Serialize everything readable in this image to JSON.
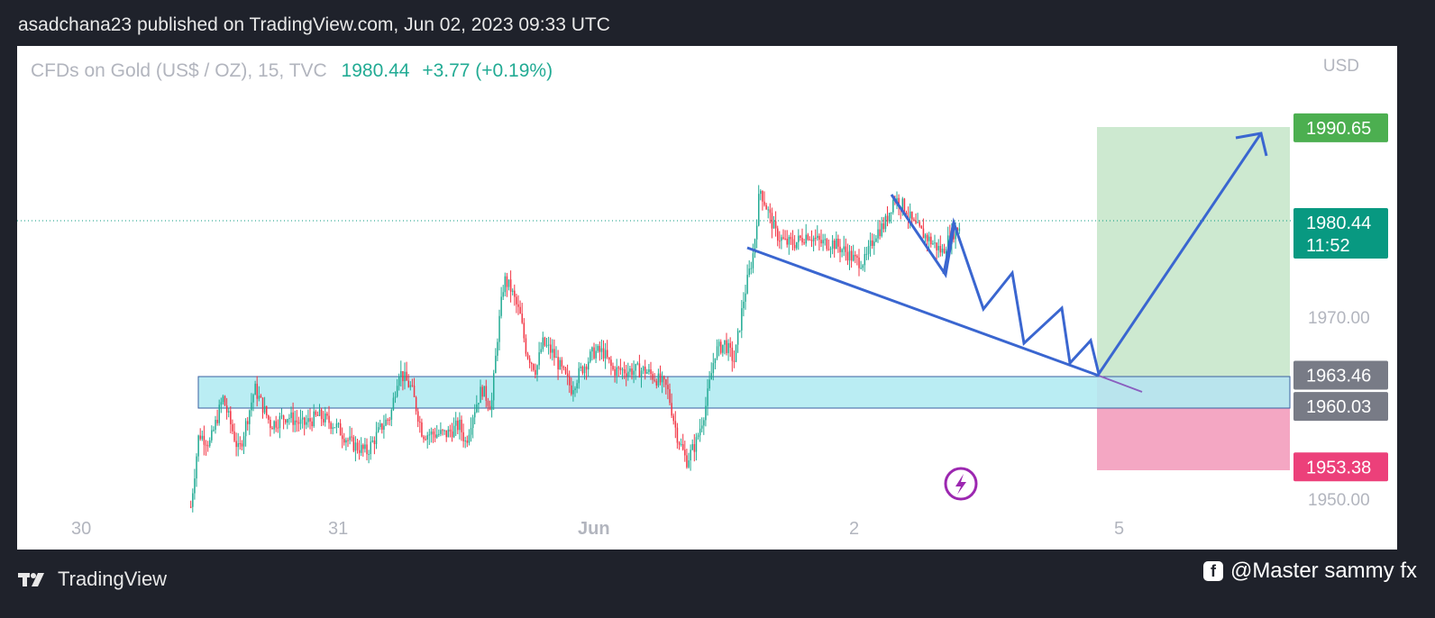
{
  "header": {
    "published_text": "asadchana23 published on TradingView.com, Jun 02, 2023 09:33 UTC"
  },
  "symbol": {
    "name": "CFDs on Gold (US$ / OZ), 15, TVC",
    "price": "1980.44",
    "change": "+3.77 (+0.19%)",
    "currency": "USD"
  },
  "footer": {
    "logo_text": "TradingView",
    "credit": "@Master sammy fx"
  },
  "colors": {
    "up": "#22ab94",
    "down": "#f23645",
    "drawing": "#3a66d0",
    "target_zone": "#cde9d0",
    "stop_zone": "#f4a7c3",
    "support_zone": "#b3ebf2"
  },
  "chart_data": {
    "type": "candlestick",
    "symbol": "CFDs on Gold (US$ / OZ)",
    "interval": "15",
    "x_ticks": [
      "30",
      "31",
      "Jun",
      "2",
      "5"
    ],
    "ylim": [
      1948,
      1995
    ],
    "y_ticks": [
      "1970.00",
      "1950.00"
    ],
    "price_labels": [
      {
        "value": 1990.65,
        "text": "1990.65",
        "color": "#4caf50"
      },
      {
        "value": 1980.44,
        "text": "1980.44",
        "sub": "11:52",
        "color": "#089981"
      },
      {
        "value": 1963.46,
        "text": "1963.46",
        "color": "#787b86"
      },
      {
        "value": 1960.03,
        "text": "1960.03",
        "color": "#787b86"
      },
      {
        "value": 1953.38,
        "text": "1953.38",
        "color": "#ec407a"
      }
    ],
    "last_price": 1980.44,
    "support_zone": [
      1960.03,
      1963.46
    ],
    "target": 1990.65,
    "stop": 1953.38,
    "price_path": [
      [
        0,
        1949
      ],
      [
        5,
        1957
      ],
      [
        12,
        1956
      ],
      [
        20,
        1961
      ],
      [
        30,
        1955
      ],
      [
        40,
        1962
      ],
      [
        50,
        1958
      ],
      [
        60,
        1959
      ],
      [
        70,
        1958
      ],
      [
        80,
        1959
      ],
      [
        90,
        1958
      ],
      [
        100,
        1956
      ],
      [
        110,
        1955
      ],
      [
        120,
        1958
      ],
      [
        125,
        1959
      ],
      [
        130,
        1964
      ],
      [
        138,
        1962
      ],
      [
        145,
        1957
      ],
      [
        152,
        1957
      ],
      [
        160,
        1957
      ],
      [
        168,
        1958
      ],
      [
        172,
        1956
      ],
      [
        176,
        1959
      ],
      [
        182,
        1962
      ],
      [
        188,
        1960
      ],
      [
        192,
        1968
      ],
      [
        196,
        1974
      ],
      [
        200,
        1973
      ],
      [
        206,
        1970
      ],
      [
        210,
        1966
      ],
      [
        216,
        1964
      ],
      [
        220,
        1967
      ],
      [
        226,
        1966
      ],
      [
        232,
        1964
      ],
      [
        238,
        1962
      ],
      [
        244,
        1964
      ],
      [
        252,
        1966
      ],
      [
        258,
        1966
      ],
      [
        264,
        1964
      ],
      [
        270,
        1964
      ],
      [
        276,
        1964
      ],
      [
        284,
        1964
      ],
      [
        292,
        1963
      ],
      [
        298,
        1962
      ],
      [
        304,
        1957
      ],
      [
        310,
        1954
      ],
      [
        316,
        1956
      ],
      [
        322,
        1960
      ],
      [
        328,
        1966
      ],
      [
        334,
        1967
      ],
      [
        340,
        1965
      ],
      [
        346,
        1972
      ],
      [
        352,
        1977
      ],
      [
        356,
        1984
      ],
      [
        360,
        1982
      ],
      [
        366,
        1979
      ],
      [
        372,
        1978
      ],
      [
        378,
        1978
      ],
      [
        386,
        1979
      ],
      [
        394,
        1978
      ],
      [
        402,
        1978
      ],
      [
        410,
        1977
      ],
      [
        416,
        1976
      ],
      [
        422,
        1976
      ],
      [
        428,
        1979
      ],
      [
        434,
        1980
      ],
      [
        440,
        1983
      ],
      [
        446,
        1982
      ],
      [
        452,
        1980
      ],
      [
        458,
        1979
      ],
      [
        464,
        1978
      ],
      [
        470,
        1977
      ],
      [
        476,
        1979
      ],
      [
        482,
        1980
      ]
    ]
  }
}
